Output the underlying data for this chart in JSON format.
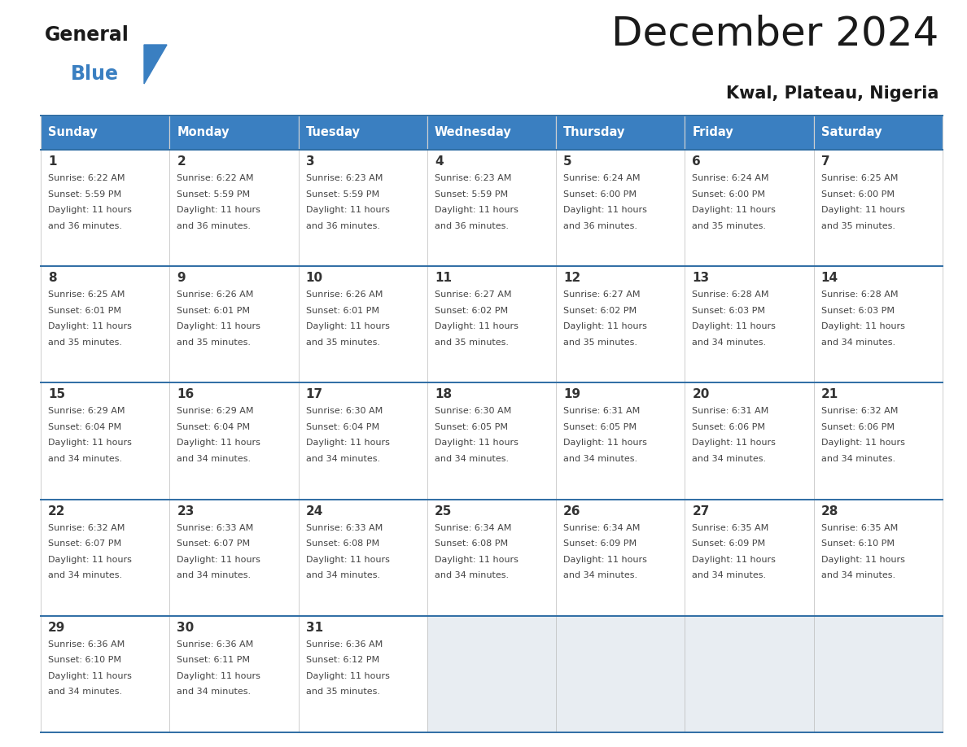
{
  "title": "December 2024",
  "subtitle": "Kwal, Plateau, Nigeria",
  "header_color": "#3a7fc1",
  "header_text_color": "#ffffff",
  "cell_bg_white": "#ffffff",
  "cell_bg_gray": "#e8edf2",
  "border_color": "#2e6da4",
  "text_color": "#444444",
  "day_num_color": "#333333",
  "days_of_week": [
    "Sunday",
    "Monday",
    "Tuesday",
    "Wednesday",
    "Thursday",
    "Friday",
    "Saturday"
  ],
  "calendar_data": [
    [
      {
        "day": "1",
        "sunrise": "6:22 AM",
        "sunset": "5:59 PM",
        "daylight_h": "11 hours",
        "daylight_m": "36 minutes."
      },
      {
        "day": "2",
        "sunrise": "6:22 AM",
        "sunset": "5:59 PM",
        "daylight_h": "11 hours",
        "daylight_m": "36 minutes."
      },
      {
        "day": "3",
        "sunrise": "6:23 AM",
        "sunset": "5:59 PM",
        "daylight_h": "11 hours",
        "daylight_m": "36 minutes."
      },
      {
        "day": "4",
        "sunrise": "6:23 AM",
        "sunset": "5:59 PM",
        "daylight_h": "11 hours",
        "daylight_m": "36 minutes."
      },
      {
        "day": "5",
        "sunrise": "6:24 AM",
        "sunset": "6:00 PM",
        "daylight_h": "11 hours",
        "daylight_m": "36 minutes."
      },
      {
        "day": "6",
        "sunrise": "6:24 AM",
        "sunset": "6:00 PM",
        "daylight_h": "11 hours",
        "daylight_m": "35 minutes."
      },
      {
        "day": "7",
        "sunrise": "6:25 AM",
        "sunset": "6:00 PM",
        "daylight_h": "11 hours",
        "daylight_m": "35 minutes."
      }
    ],
    [
      {
        "day": "8",
        "sunrise": "6:25 AM",
        "sunset": "6:01 PM",
        "daylight_h": "11 hours",
        "daylight_m": "35 minutes."
      },
      {
        "day": "9",
        "sunrise": "6:26 AM",
        "sunset": "6:01 PM",
        "daylight_h": "11 hours",
        "daylight_m": "35 minutes."
      },
      {
        "day": "10",
        "sunrise": "6:26 AM",
        "sunset": "6:01 PM",
        "daylight_h": "11 hours",
        "daylight_m": "35 minutes."
      },
      {
        "day": "11",
        "sunrise": "6:27 AM",
        "sunset": "6:02 PM",
        "daylight_h": "11 hours",
        "daylight_m": "35 minutes."
      },
      {
        "day": "12",
        "sunrise": "6:27 AM",
        "sunset": "6:02 PM",
        "daylight_h": "11 hours",
        "daylight_m": "35 minutes."
      },
      {
        "day": "13",
        "sunrise": "6:28 AM",
        "sunset": "6:03 PM",
        "daylight_h": "11 hours",
        "daylight_m": "34 minutes."
      },
      {
        "day": "14",
        "sunrise": "6:28 AM",
        "sunset": "6:03 PM",
        "daylight_h": "11 hours",
        "daylight_m": "34 minutes."
      }
    ],
    [
      {
        "day": "15",
        "sunrise": "6:29 AM",
        "sunset": "6:04 PM",
        "daylight_h": "11 hours",
        "daylight_m": "34 minutes."
      },
      {
        "day": "16",
        "sunrise": "6:29 AM",
        "sunset": "6:04 PM",
        "daylight_h": "11 hours",
        "daylight_m": "34 minutes."
      },
      {
        "day": "17",
        "sunrise": "6:30 AM",
        "sunset": "6:04 PM",
        "daylight_h": "11 hours",
        "daylight_m": "34 minutes."
      },
      {
        "day": "18",
        "sunrise": "6:30 AM",
        "sunset": "6:05 PM",
        "daylight_h": "11 hours",
        "daylight_m": "34 minutes."
      },
      {
        "day": "19",
        "sunrise": "6:31 AM",
        "sunset": "6:05 PM",
        "daylight_h": "11 hours",
        "daylight_m": "34 minutes."
      },
      {
        "day": "20",
        "sunrise": "6:31 AM",
        "sunset": "6:06 PM",
        "daylight_h": "11 hours",
        "daylight_m": "34 minutes."
      },
      {
        "day": "21",
        "sunrise": "6:32 AM",
        "sunset": "6:06 PM",
        "daylight_h": "11 hours",
        "daylight_m": "34 minutes."
      }
    ],
    [
      {
        "day": "22",
        "sunrise": "6:32 AM",
        "sunset": "6:07 PM",
        "daylight_h": "11 hours",
        "daylight_m": "34 minutes."
      },
      {
        "day": "23",
        "sunrise": "6:33 AM",
        "sunset": "6:07 PM",
        "daylight_h": "11 hours",
        "daylight_m": "34 minutes."
      },
      {
        "day": "24",
        "sunrise": "6:33 AM",
        "sunset": "6:08 PM",
        "daylight_h": "11 hours",
        "daylight_m": "34 minutes."
      },
      {
        "day": "25",
        "sunrise": "6:34 AM",
        "sunset": "6:08 PM",
        "daylight_h": "11 hours",
        "daylight_m": "34 minutes."
      },
      {
        "day": "26",
        "sunrise": "6:34 AM",
        "sunset": "6:09 PM",
        "daylight_h": "11 hours",
        "daylight_m": "34 minutes."
      },
      {
        "day": "27",
        "sunrise": "6:35 AM",
        "sunset": "6:09 PM",
        "daylight_h": "11 hours",
        "daylight_m": "34 minutes."
      },
      {
        "day": "28",
        "sunrise": "6:35 AM",
        "sunset": "6:10 PM",
        "daylight_h": "11 hours",
        "daylight_m": "34 minutes."
      }
    ],
    [
      {
        "day": "29",
        "sunrise": "6:36 AM",
        "sunset": "6:10 PM",
        "daylight_h": "11 hours",
        "daylight_m": "34 minutes."
      },
      {
        "day": "30",
        "sunrise": "6:36 AM",
        "sunset": "6:11 PM",
        "daylight_h": "11 hours",
        "daylight_m": "34 minutes."
      },
      {
        "day": "31",
        "sunrise": "6:36 AM",
        "sunset": "6:12 PM",
        "daylight_h": "11 hours",
        "daylight_m": "35 minutes."
      },
      null,
      null,
      null,
      null
    ]
  ],
  "figw": 11.88,
  "figh": 9.18,
  "dpi": 100
}
